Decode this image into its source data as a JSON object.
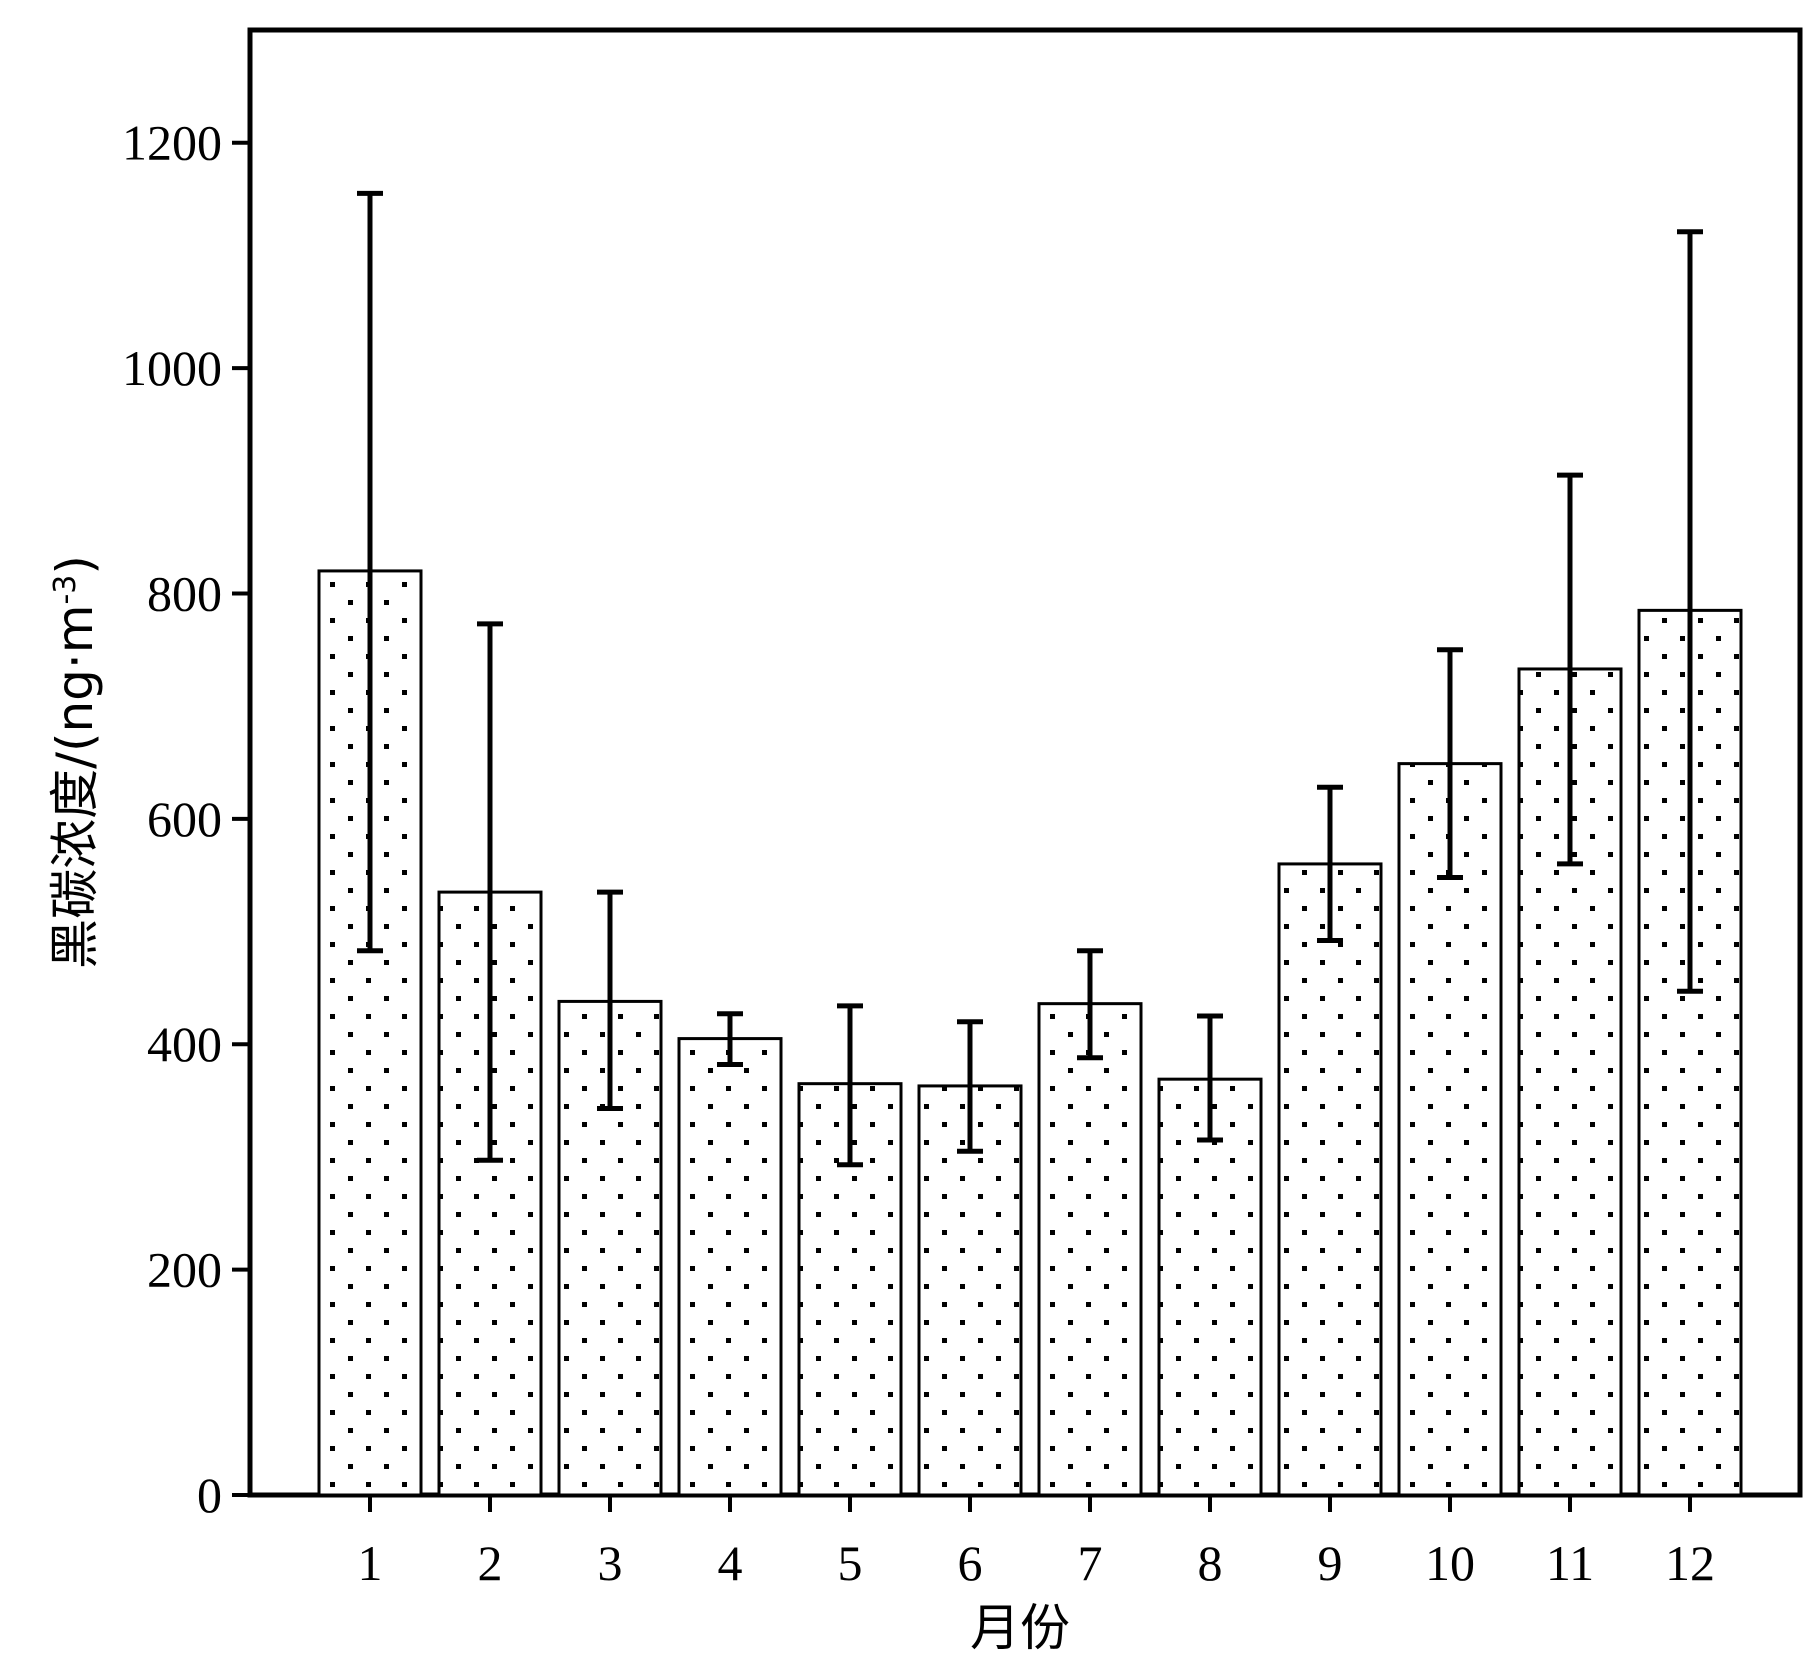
{
  "chart_data": {
    "type": "bar",
    "categories": [
      "1",
      "2",
      "3",
      "4",
      "5",
      "6",
      "7",
      "8",
      "9",
      "10",
      "11",
      "12"
    ],
    "values": [
      820,
      535,
      438,
      405,
      365,
      363,
      436,
      369,
      560,
      649,
      733,
      785
    ],
    "error_upper": [
      1155,
      773,
      535,
      427,
      434,
      420,
      483,
      425,
      628,
      750,
      905,
      1121
    ],
    "error_lower": [
      483,
      297,
      343,
      382,
      293,
      305,
      388,
      315,
      492,
      548,
      560,
      447
    ],
    "xlabel": "月份",
    "ylabel": {
      "main": "黑碳浓度/(ng·m",
      "superscript": "-3",
      "close": ")"
    },
    "ylim": [
      0,
      1300
    ],
    "yticks": [
      0,
      200,
      400,
      600,
      800,
      1000,
      1200
    ],
    "grid": false,
    "legend": "none",
    "bar_fill": "dotted",
    "colors": {
      "bar_stroke": "#000000",
      "bar_fill": "#ffffff",
      "dots": "#000000",
      "axis": "#000000"
    }
  }
}
